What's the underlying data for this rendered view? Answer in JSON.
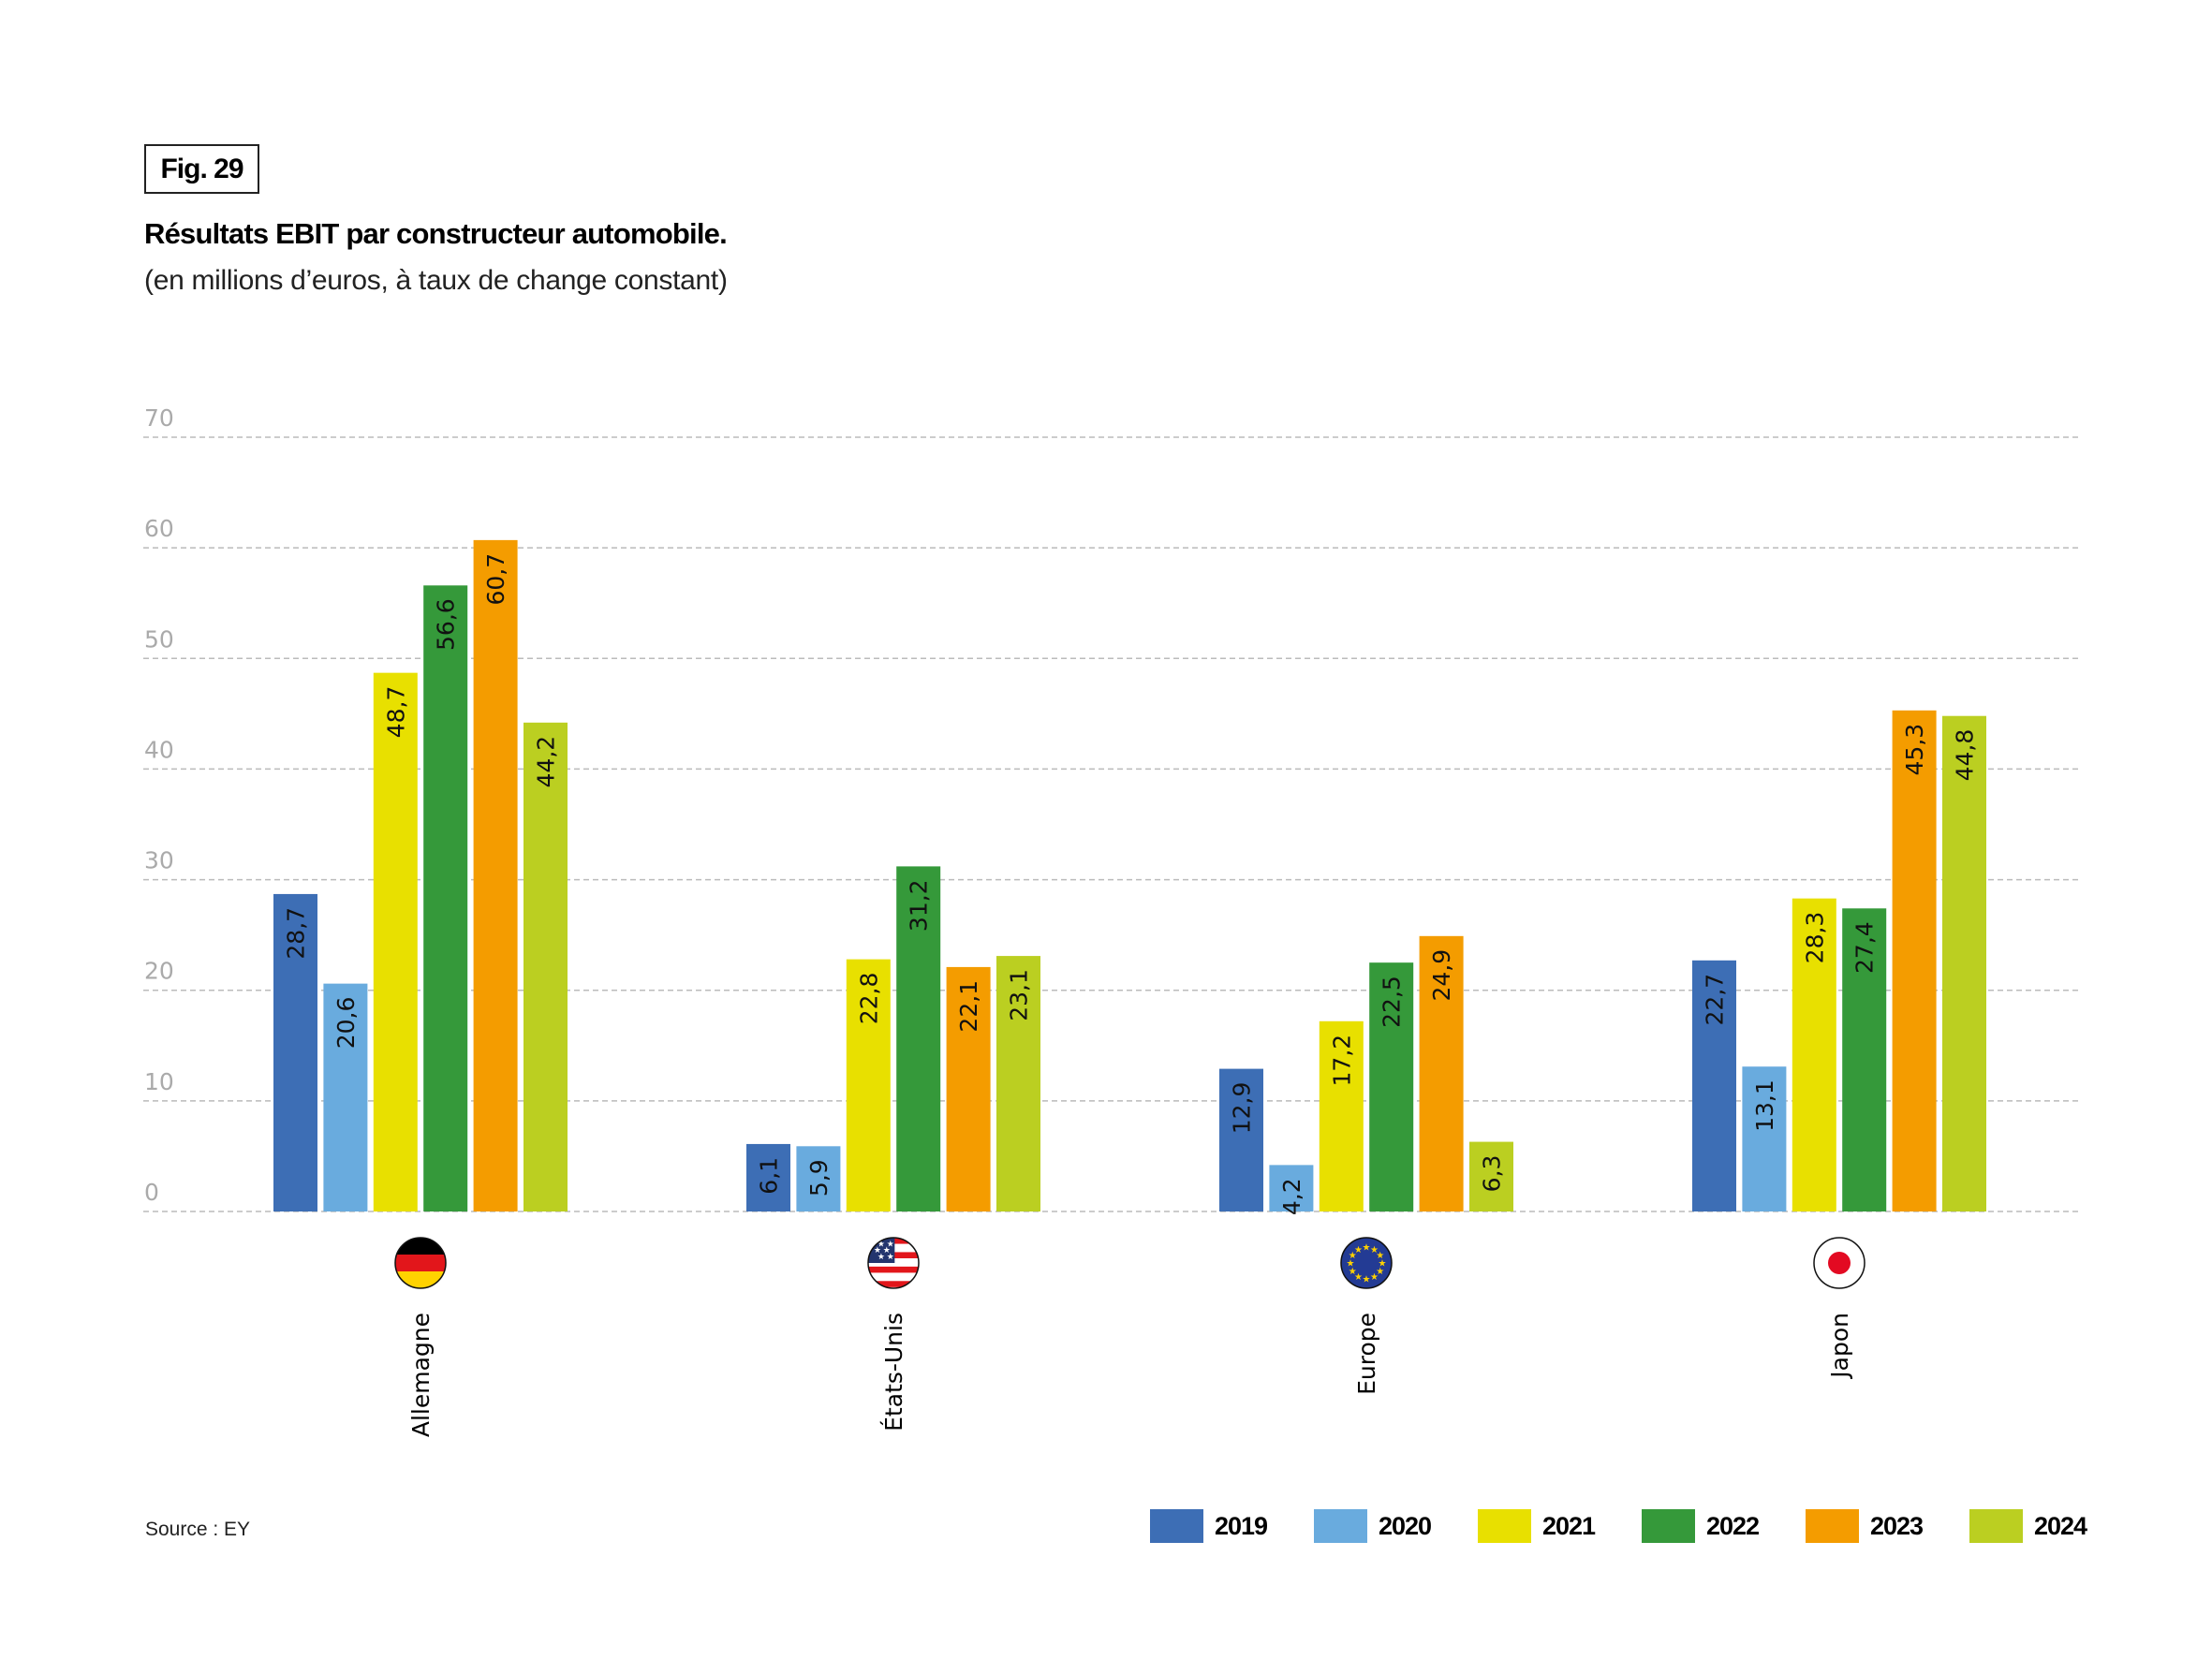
{
  "header": {
    "fig_label": "Fig. 29",
    "title": "Résultats EBIT par constructeur automobile.",
    "subtitle": "(en millions d’euros, à taux de change constant)"
  },
  "footer": {
    "source": "Source : EY"
  },
  "chart_data": {
    "type": "bar",
    "title": "Résultats EBIT par constructeur automobile.",
    "subtitle": "(en millions d’euros, à taux de change constant)",
    "xlabel": "",
    "ylabel": "",
    "ylim": [
      0,
      70
    ],
    "yticks": [
      0,
      10,
      20,
      30,
      40,
      50,
      60,
      70
    ],
    "grid": true,
    "legend_position": "bottom-right",
    "categories": [
      "Allemagne",
      "États-Unis",
      "Europe",
      "Japon"
    ],
    "category_icons": [
      "germany-flag-icon",
      "usa-flag-icon",
      "eu-flag-icon",
      "japan-flag-icon"
    ],
    "series": [
      {
        "name": "2019",
        "color": "#3d6eb5",
        "values": [
          28.7,
          6.1,
          12.9,
          22.7
        ],
        "labels": [
          "28,7",
          "6,1",
          "12,9",
          "22,7"
        ]
      },
      {
        "name": "2020",
        "color": "#69abde",
        "values": [
          20.6,
          5.9,
          4.2,
          13.1
        ],
        "labels": [
          "20,6",
          "5,9",
          "4,2",
          "13,1"
        ]
      },
      {
        "name": "2021",
        "color": "#e8e000",
        "values": [
          48.7,
          22.8,
          17.2,
          28.3
        ],
        "labels": [
          "48,7",
          "22,8",
          "17,2",
          "28,3"
        ]
      },
      {
        "name": "2022",
        "color": "#35993a",
        "values": [
          56.6,
          31.2,
          22.5,
          27.4
        ],
        "labels": [
          "56,6",
          "31,2",
          "22,5",
          "27,4"
        ]
      },
      {
        "name": "2023",
        "color": "#f49c00",
        "values": [
          60.7,
          22.1,
          24.9,
          45.3
        ],
        "labels": [
          "60,7",
          "22,1",
          "24,9",
          "45,3"
        ]
      },
      {
        "name": "2024",
        "color": "#bbcf21",
        "values": [
          44.2,
          23.1,
          6.3,
          44.8
        ],
        "labels": [
          "44,2",
          "23,1",
          "6,3",
          "44,8"
        ]
      }
    ],
    "source": "Source : EY"
  }
}
